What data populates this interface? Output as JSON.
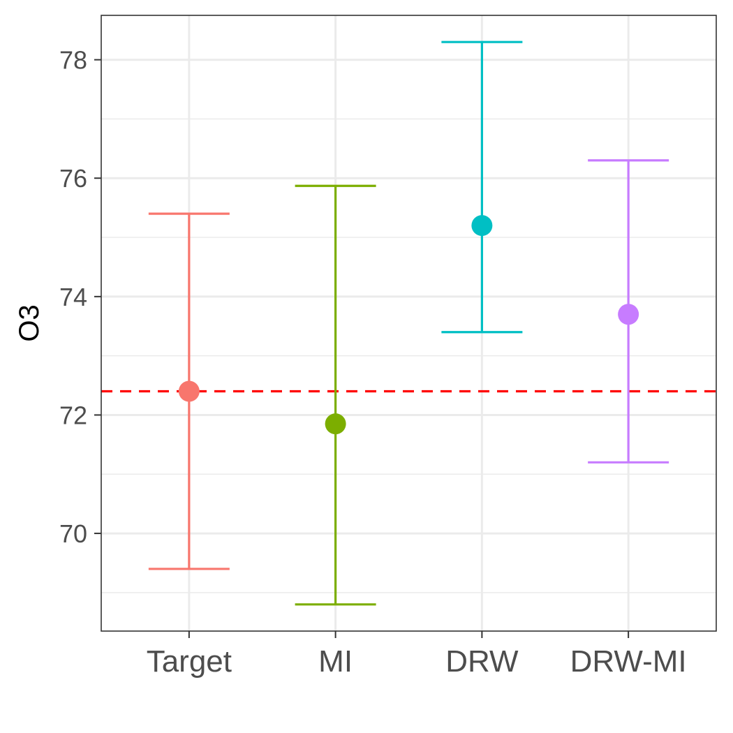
{
  "chart_data": {
    "type": "errorbar",
    "title": "",
    "xlabel": "",
    "ylabel": "O3",
    "categories": [
      "Target",
      "MI",
      "DRW",
      "DRW-MI"
    ],
    "series": [
      {
        "name": "Target",
        "value": 72.4,
        "lower": 69.4,
        "upper": 75.4,
        "color": "#F8766D"
      },
      {
        "name": "MI",
        "value": 71.85,
        "lower": 68.8,
        "upper": 75.87,
        "color": "#7CAE00"
      },
      {
        "name": "DRW",
        "value": 75.2,
        "lower": 73.4,
        "upper": 78.3,
        "color": "#00BFC4"
      },
      {
        "name": "DRW-MI",
        "value": 73.7,
        "lower": 71.2,
        "upper": 76.3,
        "color": "#C77CFF"
      }
    ],
    "reference_line": {
      "value": 72.4,
      "color": "#FF0000",
      "style": "dashed"
    },
    "ylim": [
      68.35,
      78.75
    ],
    "yticks": [
      "70",
      "72",
      "74",
      "76",
      "78"
    ],
    "grid": true,
    "legend": "none"
  }
}
